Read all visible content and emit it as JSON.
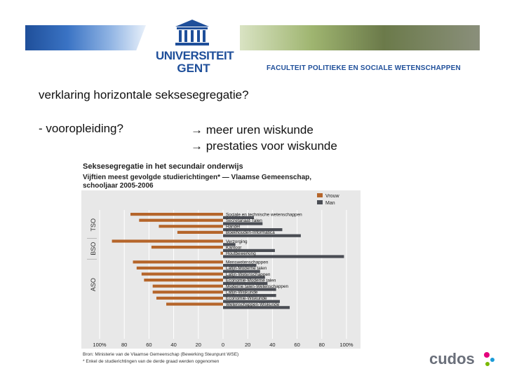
{
  "header": {
    "university_line1": "UNIVERSITEIT",
    "university_line2": "GENT",
    "faculty": "FACULTEIT POLITIEKE EN SOCIALE WETENSCHAPPEN"
  },
  "slide": {
    "title": "verklaring horizontale seksesegregatie?",
    "bullet": "- vooropleiding?",
    "arrow1": "→ meer uren wiskunde",
    "arrow2": "→ prestaties voor wiskunde"
  },
  "footer_logo": "cudos",
  "chart_data": {
    "type": "bar",
    "orientation": "horizontal-diverging",
    "title": "Seksesegregatie in het secundair onderwijs",
    "subtitle": "Vijftien meest gevolgde studierichtingen* — Vlaamse Gemeenschap, schooljaar 2005-2006",
    "source": "Bron: Ministerie van de Vlaamse Gemeenschap (Bewerking Steunpunt WSE)",
    "note": "* Enkel de studierichtingen van de derde graad werden opgenomen",
    "legend": [
      "Vrouw",
      "Man"
    ],
    "legend_position": "top-right",
    "colors": {
      "Vrouw": "#b5652a",
      "Man": "#4a4d54",
      "background": "#e8e8e8"
    },
    "xlim": [
      -100,
      100
    ],
    "xticks": [
      "100%",
      "80",
      "60",
      "40",
      "20",
      "0",
      "20",
      "40",
      "60",
      "80",
      "100%"
    ],
    "groups": [
      {
        "label": "TSO",
        "categories": [
          {
            "label": "Sociale en technische wetenschappen",
            "vrouw": 75,
            "man": 25
          },
          {
            "label": "Secretariaat-Talen",
            "vrouw": 68,
            "man": 32
          },
          {
            "label": "Handel",
            "vrouw": 52,
            "man": 48
          },
          {
            "label": "Boekhouden-Informatica",
            "vrouw": 37,
            "man": 63
          }
        ]
      },
      {
        "label": "BSO",
        "categories": [
          {
            "label": "Verzorging",
            "vrouw": 90,
            "man": 10
          },
          {
            "label": "Kantoor",
            "vrouw": 58,
            "man": 42
          },
          {
            "label": "Houtbewerking",
            "vrouw": 2,
            "man": 98
          }
        ]
      },
      {
        "label": "ASO",
        "categories": [
          {
            "label": "Menswetenschappen",
            "vrouw": 73,
            "man": 27
          },
          {
            "label": "Latijn-Moderne talen",
            "vrouw": 70,
            "man": 30
          },
          {
            "label": "Latijn-Wetenschappen",
            "vrouw": 66,
            "man": 34
          },
          {
            "label": "Economie-Moderne talen",
            "vrouw": 64,
            "man": 36
          },
          {
            "label": "Moderne talen-Wetenschappen",
            "vrouw": 57,
            "man": 43
          },
          {
            "label": "Latijn-Wiskunde",
            "vrouw": 57,
            "man": 43
          },
          {
            "label": "Economie-Wiskunde",
            "vrouw": 54,
            "man": 46
          },
          {
            "label": "Wetenschappen-Wiskunde",
            "vrouw": 46,
            "man": 54
          }
        ]
      }
    ]
  }
}
